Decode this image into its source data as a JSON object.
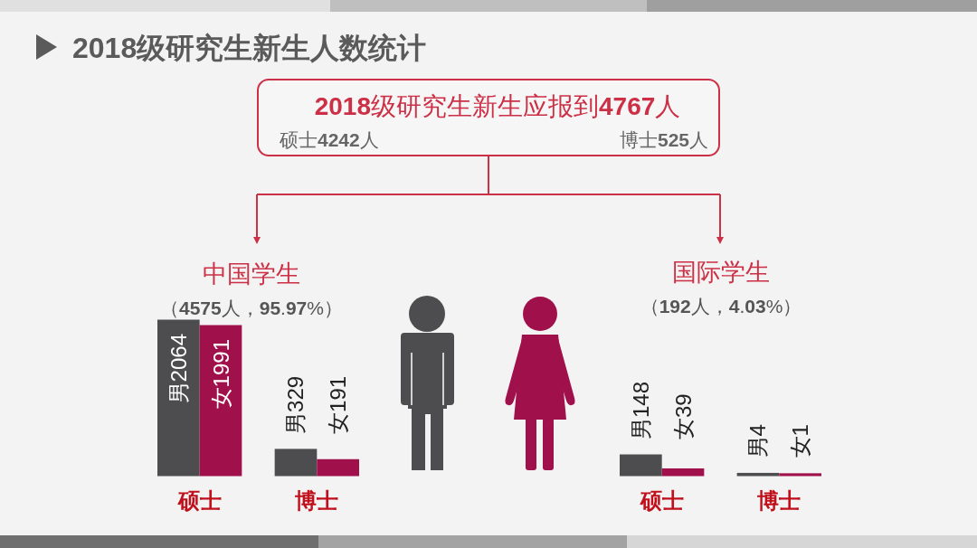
{
  "chart_data": [
    {
      "type": "other",
      "title": "2018级研究生新生人数统计",
      "annotations": [
        "2018级研究生新生应报到4767人",
        "硕士4242人",
        "博士525人"
      ]
    },
    {
      "type": "bar",
      "title": "中国学生",
      "subtitle": "（4575人，95.97%）",
      "categories": [
        "硕士",
        "博士"
      ],
      "series": [
        {
          "color": "#4d4d4f",
          "values": [
            2064,
            329
          ],
          "value_labels": [
            "男2064",
            "男329"
          ]
        },
        {
          "color": "#a0114c",
          "values": [
            1991,
            191
          ],
          "value_labels": [
            "女1991",
            "女191"
          ]
        }
      ]
    },
    {
      "type": "bar",
      "title": "国际学生",
      "subtitle": "（192人，4.03%）",
      "categories": [
        "硕士",
        "博士"
      ],
      "series": [
        {
          "color": "#4d4d4f",
          "values": [
            148,
            4
          ],
          "value_labels": [
            "男148",
            "男4"
          ]
        },
        {
          "color": "#a0114c",
          "values": [
            39,
            1
          ],
          "value_labels": [
            "女39",
            "女1"
          ]
        }
      ]
    }
  ]
}
